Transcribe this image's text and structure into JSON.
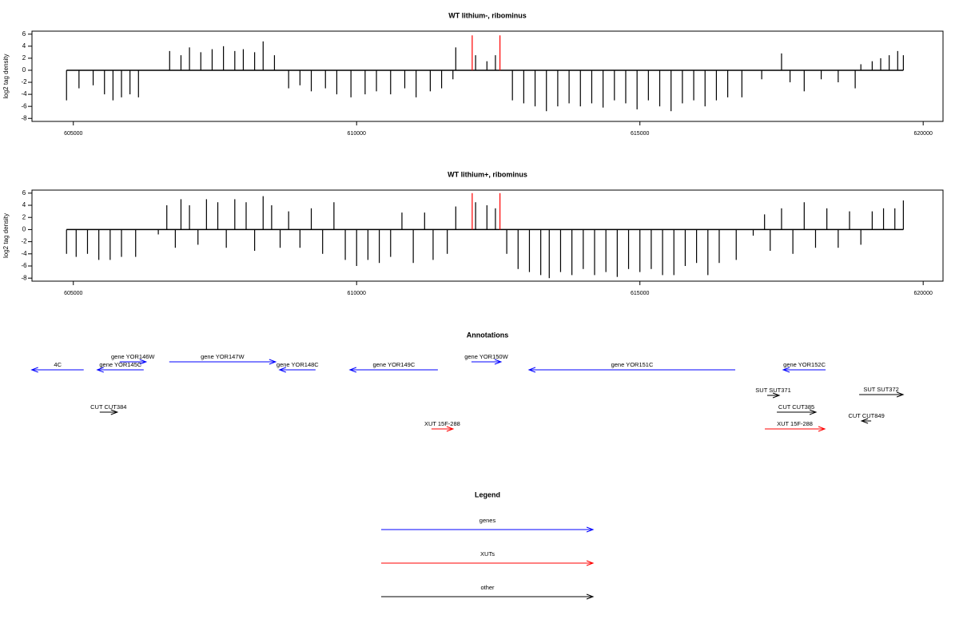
{
  "chart_data": [
    {
      "type": "bar",
      "title": "WT lithium-, ribominus",
      "y_label": "log2 tag density",
      "color": "#000000",
      "x": [
        604880,
        605100,
        605350,
        605550,
        605700,
        605850,
        606000,
        606150,
        606700,
        606900,
        607050,
        607250,
        607450,
        607650,
        607850,
        608000,
        608200,
        608350,
        608550,
        608800,
        609000,
        609200,
        609450,
        609650,
        609900,
        610150,
        610350,
        610600,
        610850,
        611050,
        611300,
        611500,
        611700,
        611750,
        612100,
        612300,
        612450,
        612750,
        612950,
        613150,
        613350,
        613550,
        613750,
        613950,
        614150,
        614350,
        614550,
        614750,
        614950,
        615150,
        615350,
        615550,
        615750,
        615950,
        616150,
        616350,
        616550,
        616800,
        617150,
        617500,
        617650,
        617900,
        618200,
        618500,
        618800,
        618900,
        619100,
        619250,
        619400,
        619550,
        619650
      ],
      "values": [
        -5,
        -3,
        -2.5,
        -4,
        -5,
        -4.5,
        -4,
        -4.5,
        3.2,
        2.5,
        3.8,
        3,
        3.5,
        4,
        3.2,
        3.5,
        3,
        4.8,
        2.5,
        -3,
        -2.5,
        -3.5,
        -3,
        -4,
        -4.5,
        -4,
        -3.5,
        -4,
        -3,
        -4.5,
        -3.5,
        -3,
        -1.5,
        3.8,
        2.5,
        1.5,
        2.5,
        -5,
        -5.5,
        -6,
        -6.8,
        -6,
        -5.5,
        -6,
        -5.5,
        -6.2,
        -5,
        -5.5,
        -6.5,
        -5,
        -6,
        -6.8,
        -5.5,
        -5,
        -6,
        -5,
        -4.5,
        -4.5,
        -1.5,
        2.8,
        -2,
        -3.5,
        -1.5,
        -2,
        -3,
        1,
        1.5,
        2,
        2.5,
        3.2,
        2.5
      ],
      "highlight": {
        "color": "#ff0000",
        "x": [
          612040,
          612530
        ],
        "values": [
          5.8,
          5.8
        ]
      },
      "xlim": [
        604270,
        620350
      ],
      "ylim": [
        -8.5,
        6.5
      ],
      "xticks": [
        605000,
        610000,
        615000,
        620000
      ],
      "yticks": [
        6,
        4,
        2,
        0,
        -2,
        -4,
        -6,
        -8
      ]
    },
    {
      "type": "bar",
      "title": "WT lithium+, ribominus",
      "y_label": "log2 tag density",
      "color": "#000000",
      "x": [
        604880,
        605050,
        605250,
        605450,
        605650,
        605850,
        606100,
        606500,
        606650,
        606800,
        606900,
        607050,
        607200,
        607350,
        607550,
        607700,
        607850,
        608050,
        608200,
        608350,
        608500,
        608650,
        608800,
        609000,
        609200,
        609400,
        609600,
        609800,
        610000,
        610200,
        610400,
        610600,
        610800,
        611000,
        611200,
        611350,
        611600,
        611750,
        612100,
        612300,
        612450,
        612650,
        612850,
        613050,
        613250,
        613400,
        613600,
        613800,
        614000,
        614200,
        614400,
        614600,
        614800,
        615000,
        615200,
        615400,
        615600,
        615800,
        616000,
        616200,
        616400,
        616700,
        617000,
        617200,
        617300,
        617500,
        617700,
        617900,
        618100,
        618300,
        618500,
        618700,
        618900,
        619100,
        619300,
        619500,
        619650
      ],
      "values": [
        -4,
        -4.5,
        -4,
        -5,
        -5,
        -4.5,
        -4.5,
        -0.8,
        4,
        -3,
        5,
        4,
        -2.5,
        5,
        4.5,
        -3,
        5,
        4.5,
        -3.5,
        5.5,
        4,
        -3,
        3,
        -3,
        3.5,
        -4,
        4.5,
        -5,
        -6,
        -5,
        -5.5,
        -4.5,
        2.8,
        -5.5,
        2.8,
        -5,
        -4,
        3.8,
        4.5,
        4,
        3.5,
        -4,
        -6.5,
        -7,
        -7.5,
        -8,
        -7,
        -7.5,
        -6.5,
        -7.5,
        -7,
        -7.8,
        -6.5,
        -7,
        -6.5,
        -7.5,
        -7.5,
        -6,
        -5.5,
        -7.5,
        -5.5,
        -5,
        -1,
        2.5,
        -3.5,
        3.5,
        -4,
        4.5,
        -3,
        3.5,
        -3,
        3,
        -2.5,
        3,
        3.5,
        3.5,
        4.8
      ],
      "highlight": {
        "color": "#ff0000",
        "x": [
          612040,
          612530
        ],
        "values": [
          6,
          6
        ]
      },
      "xlim": [
        604270,
        620350
      ],
      "ylim": [
        -8.5,
        6.5
      ],
      "xticks": [
        605000,
        610000,
        615000,
        620000
      ],
      "yticks": [
        6,
        4,
        2,
        0,
        -2,
        -4,
        -6,
        -8
      ]
    },
    {
      "type": "annotation",
      "title": "Annotations",
      "xlim": [
        604270,
        620350
      ],
      "features": [
        {
          "label": "4C",
          "start": 605183,
          "end": 604266,
          "color": "#0000ff"
        },
        {
          "label": "gene YOR146W",
          "start": 605818,
          "end": 606284,
          "color": "#0000ff"
        },
        {
          "label": "gene YOR145C",
          "start": 606242,
          "end": 605423,
          "color": "#0000ff"
        },
        {
          "label": "gene YOR147W",
          "start": 606693,
          "end": 608570,
          "color": "#0000ff"
        },
        {
          "label": "gene YOR148C",
          "start": 609275,
          "end": 608640,
          "color": "#0000ff"
        },
        {
          "label": "gene YOR149C",
          "start": 611434,
          "end": 609882,
          "color": "#0000ff"
        },
        {
          "label": "gene YOR150W",
          "start": 612027,
          "end": 612549,
          "color": "#0000ff"
        },
        {
          "label": "gene YOR151C",
          "start": 616683,
          "end": 613043,
          "color": "#0000ff"
        },
        {
          "label": "gene YOR152C",
          "start": 618278,
          "end": 617530,
          "color": "#0000ff"
        },
        {
          "label": "SUT SUT371",
          "start": 617247,
          "end": 617459,
          "color": "#000000"
        },
        {
          "label": "SUT SUT372",
          "start": 618870,
          "end": 619646,
          "color": "#000000"
        },
        {
          "label": "CUT CUT384",
          "start": 605466,
          "end": 605776,
          "color": "#000000"
        },
        {
          "label": "CUT CUT385",
          "start": 617417,
          "end": 618108,
          "color": "#000000"
        },
        {
          "label": "CUT CUT849",
          "start": 619082,
          "end": 618913,
          "color": "#000000"
        },
        {
          "label": "XUT 15F-288",
          "start": 611321,
          "end": 611702,
          "color": "#ff0000"
        },
        {
          "label": "XUT 15F-288",
          "start": 617205,
          "end": 618263,
          "color": "#ff0000"
        }
      ]
    },
    {
      "type": "legend",
      "title": "Legend",
      "items": [
        {
          "label": "genes",
          "color": "#0000ff"
        },
        {
          "label": "XUTs",
          "color": "#ff0000"
        },
        {
          "label": "other",
          "color": "#000000"
        }
      ]
    }
  ]
}
